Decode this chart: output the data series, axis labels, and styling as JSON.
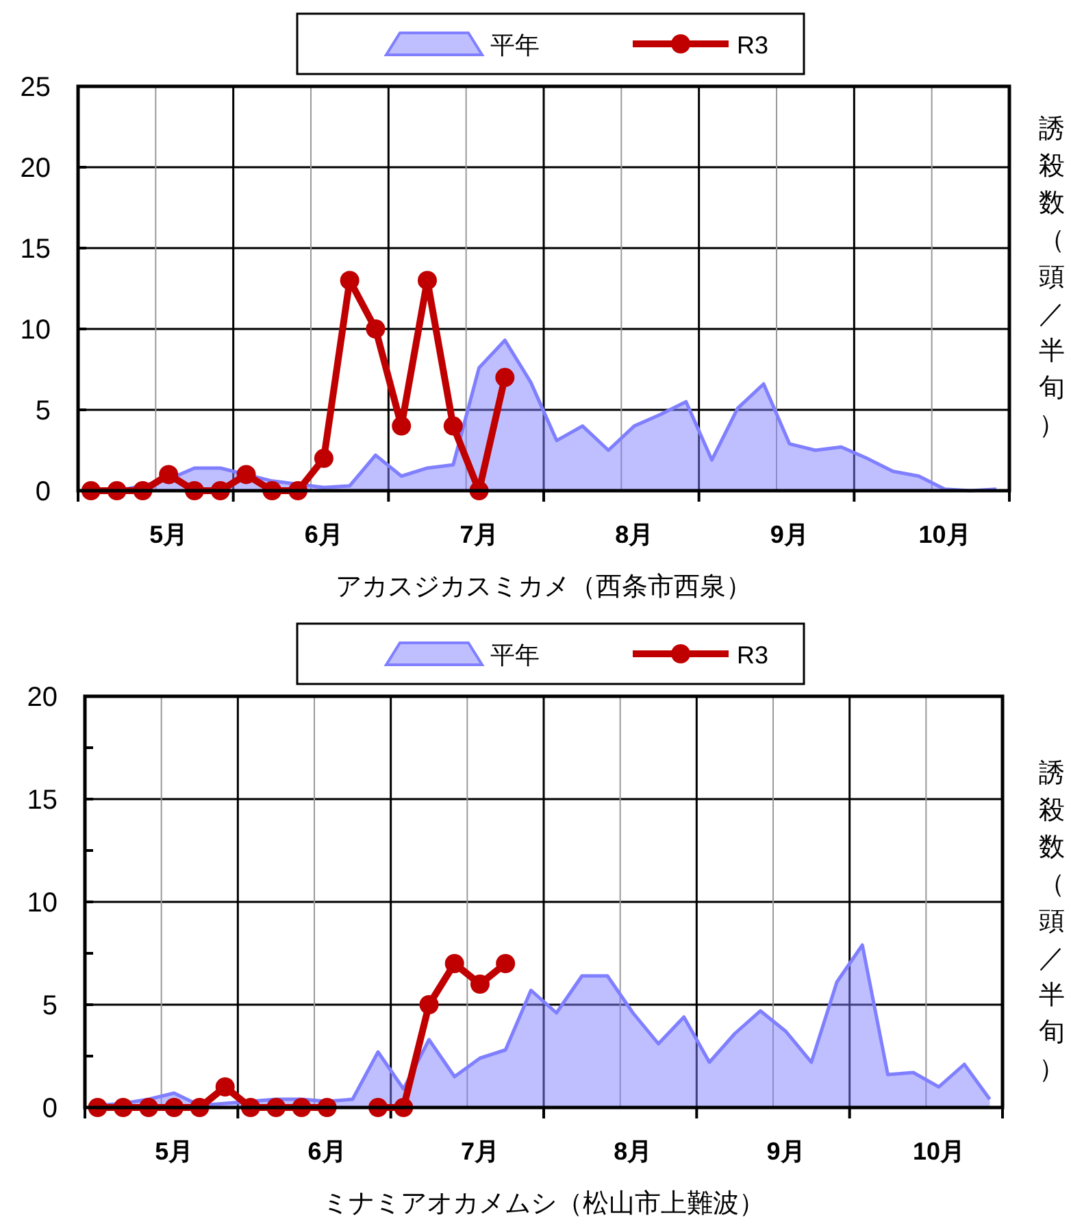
{
  "chart_data": [
    {
      "type": "line",
      "xlabel": "アカスジカスミカメ（西条市西泉）",
      "ylabel": "誘殺数（頭／半旬）",
      "legend": "top",
      "grid": true,
      "categories": [
        null,
        null,
        null,
        "5月",
        null,
        null,
        null,
        null,
        null,
        "6月",
        null,
        null,
        null,
        null,
        null,
        "7月",
        null,
        null,
        null,
        null,
        null,
        "8月",
        null,
        null,
        null,
        null,
        null,
        "9月",
        null,
        null,
        null,
        null,
        null,
        "10月",
        null,
        null
      ],
      "ylim": [
        0,
        25
      ],
      "yticks": [
        0,
        5,
        10,
        15,
        20,
        25
      ],
      "series": [
        {
          "name": "平年",
          "type": "area",
          "color": "#7f7fff",
          "values": [
            0,
            0,
            0.3,
            0.7,
            1.4,
            1.4,
            1.0,
            0.6,
            0.4,
            0.2,
            0.3,
            2.2,
            0.9,
            1.4,
            1.6,
            7.6,
            9.3,
            6.7,
            3.1,
            4.0,
            2.5,
            4.0,
            4.7,
            5.5,
            1.9,
            5.1,
            6.6,
            2.9,
            2.5,
            2.7,
            2.0,
            1.2,
            0.9,
            0.1,
            0,
            0.1
          ]
        },
        {
          "name": "R3",
          "type": "line",
          "marker": "circle",
          "color": "#c00000",
          "values": [
            0,
            0,
            0,
            1,
            0,
            0,
            1,
            0,
            0,
            2,
            13,
            10,
            4,
            13,
            4,
            0,
            7,
            null,
            null,
            null,
            null,
            null,
            null,
            null,
            null,
            null,
            null,
            null,
            null,
            null,
            null,
            null,
            null,
            null,
            null,
            null
          ]
        }
      ]
    },
    {
      "type": "line",
      "xlabel": "ミナミアオカメムシ（松山市上難波）",
      "ylabel": "誘殺数（頭／半旬）",
      "legend": "top",
      "grid": true,
      "categories": [
        null,
        null,
        null,
        "5月",
        null,
        null,
        null,
        null,
        null,
        "6月",
        null,
        null,
        null,
        null,
        null,
        "7月",
        null,
        null,
        null,
        null,
        null,
        "8月",
        null,
        null,
        null,
        null,
        null,
        "9月",
        null,
        null,
        null,
        null,
        null,
        "10月",
        null,
        null
      ],
      "ylim": [
        0,
        20
      ],
      "yticks": [
        0,
        {
          "value": 2.5,
          "label": null
        },
        5,
        {
          "value": 7.5,
          "label": null
        },
        10,
        {
          "value": 12.5,
          "label": null
        },
        15,
        {
          "value": 17.5,
          "label": null
        },
        20
      ],
      "series": [
        {
          "name": "平年",
          "type": "area",
          "color": "#7f7fff",
          "values": [
            0.1,
            0.2,
            0.4,
            0.7,
            0.1,
            0.2,
            0.3,
            0.4,
            0.4,
            0.3,
            0.4,
            2.7,
            0.9,
            3.3,
            1.5,
            2.4,
            2.8,
            5.7,
            4.6,
            6.4,
            6.4,
            4.6,
            3.1,
            4.4,
            2.2,
            3.6,
            4.7,
            3.7,
            2.2,
            6.1,
            7.9,
            1.6,
            1.7,
            1.0,
            2.1,
            0.4
          ]
        },
        {
          "name": "R3",
          "type": "line",
          "marker": "circle",
          "color": "#c00000",
          "values": [
            0,
            0,
            0,
            0,
            0,
            1,
            0,
            0,
            0,
            0,
            null,
            0,
            0,
            5,
            7,
            6,
            7,
            null,
            null,
            null,
            null,
            null,
            null,
            null,
            null,
            null,
            null,
            null,
            null,
            null,
            null,
            null,
            null,
            null,
            null,
            null
          ]
        }
      ]
    }
  ]
}
